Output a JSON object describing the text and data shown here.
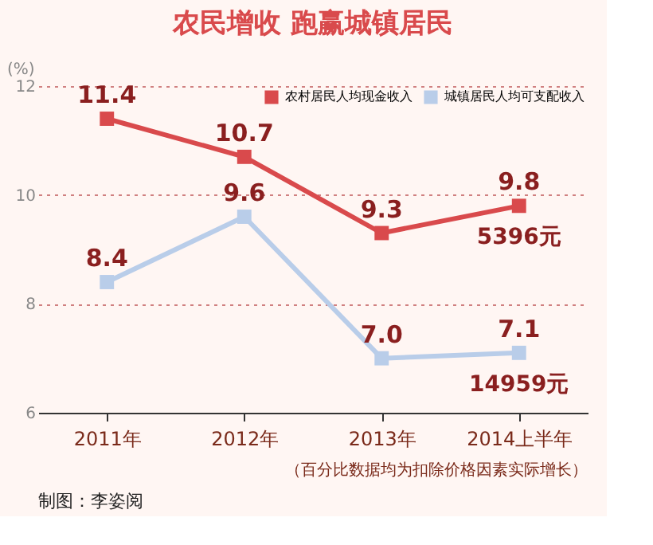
{
  "chart_data": {
    "type": "line",
    "title": "农民增收 跑赢城镇居民",
    "ylabel": "(%)",
    "categories": [
      "2011年",
      "2012年",
      "2013年",
      "2014上半年"
    ],
    "series": [
      {
        "name": "农村居民人均现金收入",
        "color": "#d94a4c",
        "values": [
          11.4,
          10.7,
          9.3,
          9.8
        ]
      },
      {
        "name": "城镇居民人均可支配收入",
        "color": "#b9cde9",
        "values": [
          8.4,
          9.6,
          7.0,
          7.1
        ],
        "value_labels": [
          "8.4",
          "9.6",
          "7.0",
          "7.1"
        ]
      }
    ],
    "ylim": [
      6,
      12
    ],
    "yticks": [
      6,
      8,
      10,
      12
    ],
    "grid": "y",
    "legend": "top right",
    "marker": "square",
    "line_style": "solid",
    "data_labels": true,
    "annotations": [
      {
        "text": "5396元",
        "x": "2014上半年",
        "y": 9.8
      },
      {
        "text": "14959元",
        "x": "2014上半年",
        "y": 7.1
      },
      "（百分比数据均为扣除价格因素实际增长）",
      "制图：李姿阅"
    ]
  }
}
